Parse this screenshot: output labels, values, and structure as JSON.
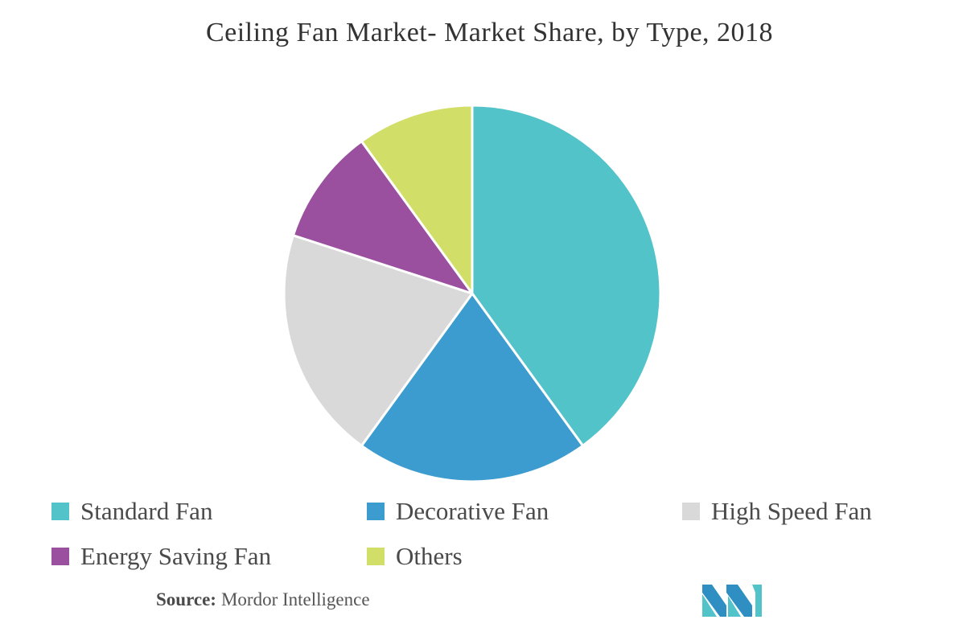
{
  "chart_data": {
    "type": "pie",
    "title": "Ceiling Fan Market- Market Share, by Type, 2018",
    "categories": [
      "Standard Fan",
      "Decorative Fan",
      "High Speed Fan",
      "Energy Saving Fan",
      "Others"
    ],
    "values": [
      40,
      20,
      20,
      10,
      10
    ],
    "colors": [
      "#52c3c9",
      "#3d9ccf",
      "#d9d9d9",
      "#9a4f9f",
      "#d1de68"
    ],
    "start_angle_deg": 0,
    "direction": "clockwise",
    "legend_position": "bottom"
  },
  "footer": {
    "source_label": "Source:",
    "source_value": "Mordor Intelligence",
    "logo": {
      "icon": "mordor-intelligence-logo",
      "colors": [
        "#2f8fc2",
        "#52c3c9"
      ]
    }
  }
}
